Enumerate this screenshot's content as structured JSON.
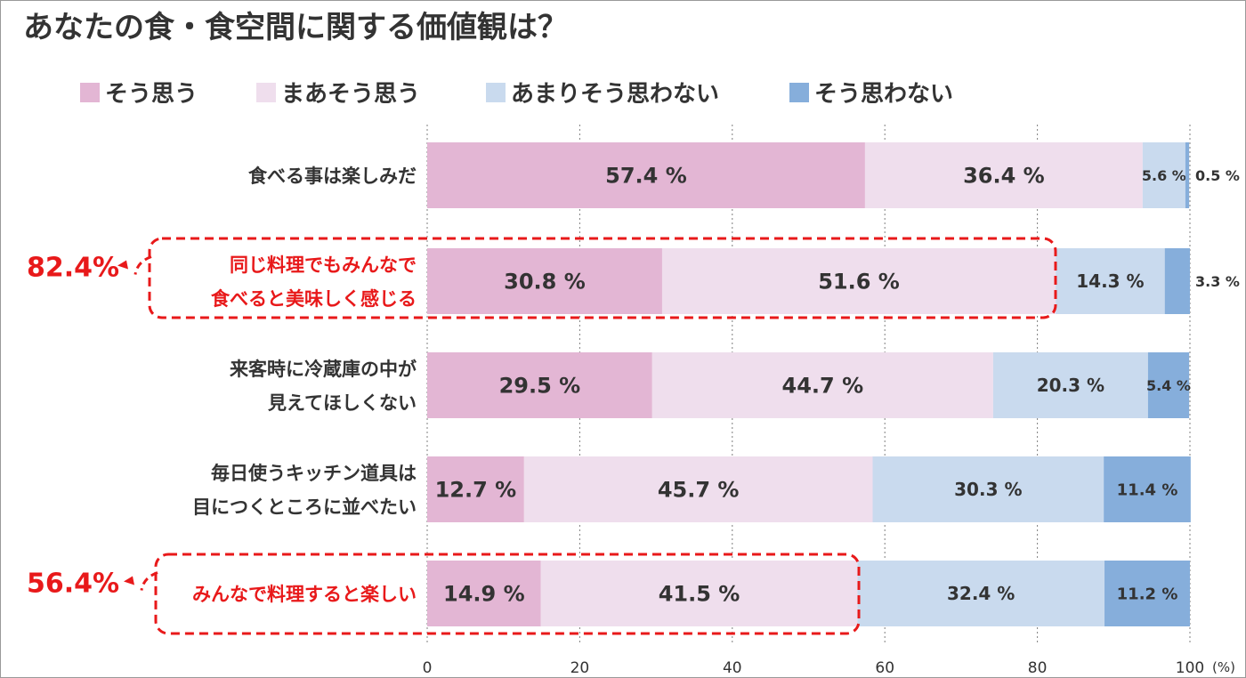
{
  "chart_data": {
    "type": "bar",
    "orientation": "horizontal",
    "stacked": true,
    "title": "あなたの食・食空間に関する価値観は？",
    "unit_label": "(%)",
    "xlim": [
      0,
      100
    ],
    "x_ticks": [
      "0",
      "20",
      "40",
      "60",
      "80",
      "100"
    ],
    "grid": true,
    "legend_position": "top",
    "series": [
      {
        "name": "そう思う",
        "color": "#e3b6d4"
      },
      {
        "name": "まあそう思う",
        "color": "#efdeed"
      },
      {
        "name": "あまりそう思わない",
        "color": "#c9daee"
      },
      {
        "name": "そう思わない",
        "color": "#86aedb"
      }
    ],
    "categories": [
      {
        "lines": [
          "食べる事は楽しみだ"
        ],
        "values": [
          57.4,
          36.4,
          5.6,
          0.5
        ],
        "labels": [
          "57.4 %",
          "36.4 %",
          "5.6 %",
          "0.5 %"
        ],
        "highlight": false
      },
      {
        "lines": [
          "同じ料理でもみんなで",
          "食べると美味しく感じる"
        ],
        "values": [
          30.8,
          51.6,
          14.3,
          3.3
        ],
        "labels": [
          "30.8 %",
          "51.6 %",
          "14.3 %",
          "3.3 %"
        ],
        "highlight": true,
        "callout": "82.4%"
      },
      {
        "lines": [
          "来客時に冷蔵庫の中が",
          "見えてほしくない"
        ],
        "values": [
          29.5,
          44.7,
          20.3,
          5.4
        ],
        "labels": [
          "29.5 %",
          "44.7 %",
          "20.3 %",
          "5.4 %"
        ],
        "highlight": false
      },
      {
        "lines": [
          "毎日使うキッチン道具は",
          "目につくところに並べたい"
        ],
        "values": [
          12.7,
          45.7,
          30.3,
          11.4
        ],
        "labels": [
          "12.7 %",
          "45.7 %",
          "30.3 %",
          "11.4 %"
        ],
        "highlight": false
      },
      {
        "lines": [
          "みんなで料理すると楽しい"
        ],
        "values": [
          14.9,
          41.5,
          32.4,
          11.2
        ],
        "labels": [
          "14.9 %",
          "41.5 %",
          "32.4 %",
          "11.2 %"
        ],
        "highlight": true,
        "callout": "56.4%"
      }
    ]
  }
}
